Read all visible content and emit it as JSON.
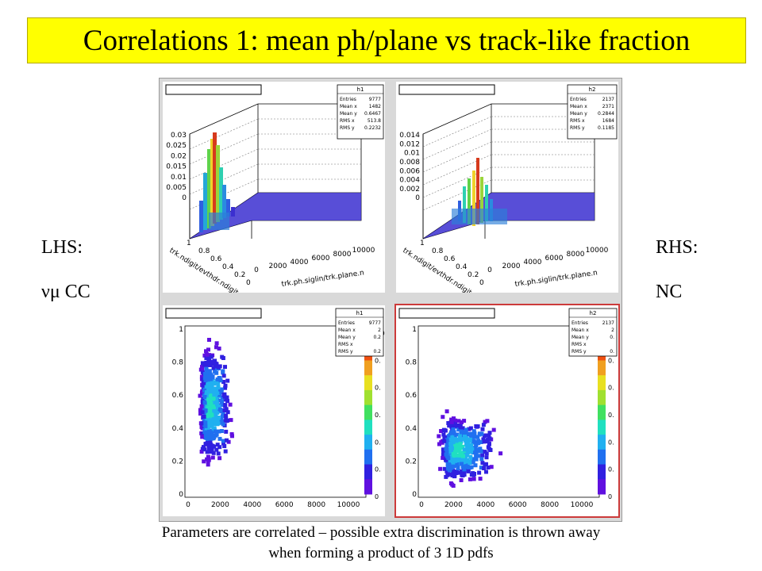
{
  "slide": {
    "title": "Correlations 1: mean ph/plane vs track-like fraction",
    "lhs_label": "LHS:",
    "lhs_sub": "νμ CC",
    "rhs_label": "RHS:",
    "rhs_sub": "NC",
    "footer_line1": "Parameters are correlated – possible extra discrimination is thrown away",
    "footer_line2": "when forming a product of 3 1D pdfs"
  },
  "pads": {
    "tl": {
      "hist": "h1",
      "stats": [
        [
          "Entries",
          "9777"
        ],
        [
          "Mean x",
          "1482"
        ],
        [
          "Mean y",
          "0.6467"
        ],
        [
          "RMS x",
          "513.8"
        ],
        [
          "RMS y",
          "0.2232"
        ]
      ],
      "zticks": [
        "0.03",
        "0.025",
        "0.02",
        "0.015",
        "0.01",
        "0.005",
        "0"
      ],
      "xticks": [
        "0",
        "2000",
        "4000",
        "6000",
        "8000",
        "10000"
      ],
      "yticks": [
        "1",
        "0.8",
        "0.6",
        "0.4",
        "0.2",
        "0"
      ],
      "xtitle": "trk.ph.siglin/trk.plane.n",
      "ytitle": "trk.ndigit/evthdr.ndigit"
    },
    "tr": {
      "hist": "h2",
      "stats": [
        [
          "Entries",
          "2137"
        ],
        [
          "Mean x",
          "2371"
        ],
        [
          "Mean y",
          "0.2844"
        ],
        [
          "RMS x",
          "1684"
        ],
        [
          "RMS y",
          "0.1185"
        ]
      ],
      "zticks": [
        "0.014",
        "0.012",
        "0.01",
        "0.008",
        "0.006",
        "0.004",
        "0.002",
        "0"
      ],
      "xticks": [
        "0",
        "2000",
        "4000",
        "6000",
        "8000",
        "10000"
      ],
      "yticks": [
        "1",
        "0.8",
        "0.6",
        "0.4",
        "0.2",
        "0"
      ],
      "xtitle": "trk.ph.siglin/trk.plane.n",
      "ytitle": "trk.ndigit/evthdr.ndigit"
    },
    "bl": {
      "hist": "h1",
      "stats": [
        [
          "Entries",
          "9777"
        ],
        [
          "Mean x",
          "2"
        ],
        [
          "Mean y",
          "0.2"
        ],
        [
          "RMS x",
          ""
        ],
        [
          "RMS y",
          "0.2"
        ]
      ],
      "xticks": [
        "0",
        "2000",
        "4000",
        "6000",
        "8000",
        "10000"
      ],
      "yticks": [
        "1",
        "0.8",
        "0.6",
        "0.4",
        "0.2",
        "0"
      ],
      "palette_ticks": [
        "0.0",
        "0.",
        "0.",
        "0.",
        "0.",
        "0.",
        "0"
      ]
    },
    "br": {
      "hist": "h2",
      "stats": [
        [
          "Entries",
          "2137"
        ],
        [
          "Mean x",
          "2"
        ],
        [
          "Mean y",
          "0."
        ],
        [
          "RMS x",
          ""
        ],
        [
          "RMS y",
          "0."
        ]
      ],
      "xticks": [
        "0",
        "2000",
        "4000",
        "6000",
        "8000",
        "10000"
      ],
      "yticks": [
        "1",
        "0.8",
        "0.6",
        "0.4",
        "0.2",
        "0"
      ],
      "palette_ticks": [
        "0.",
        "0.",
        "0.",
        "0.",
        "0.",
        "0.",
        "0"
      ]
    }
  }
}
